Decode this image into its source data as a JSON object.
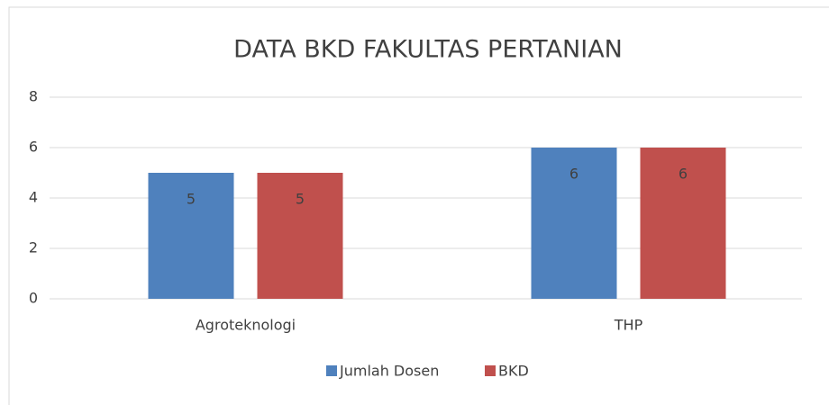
{
  "chart_data": {
    "type": "bar",
    "title": "DATA BKD FAKULTAS PERTANIAN",
    "categories": [
      "Agroteknologi",
      "THP"
    ],
    "series": [
      {
        "name": "Jumlah Dosen",
        "color": "#4f81bd",
        "values": [
          5,
          6
        ]
      },
      {
        "name": "BKD",
        "color": "#c0504d",
        "values": [
          5,
          6
        ]
      }
    ],
    "ylim": [
      0,
      8
    ],
    "yticks": [
      0,
      2,
      4,
      6,
      8
    ],
    "grid": true,
    "data_labels": true,
    "legend": "bottom"
  }
}
